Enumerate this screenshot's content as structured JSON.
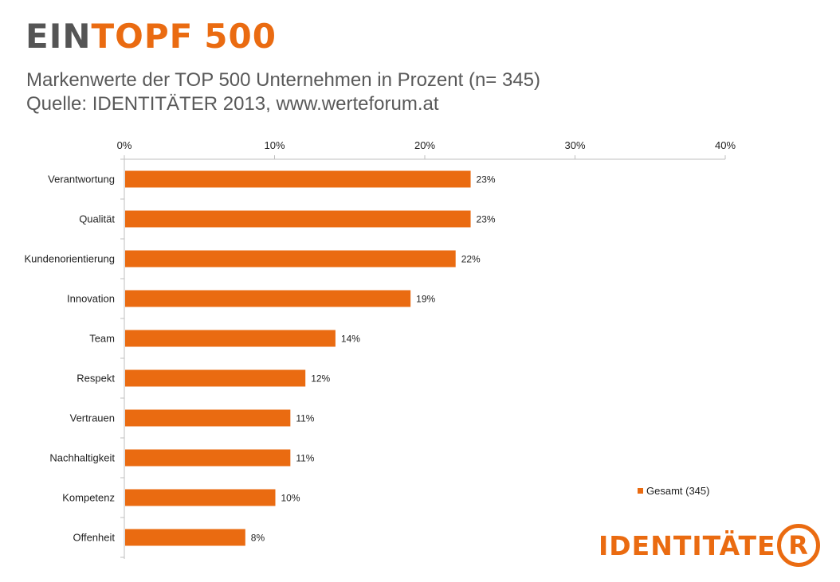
{
  "header": {
    "headline_part1": "EIN",
    "headline_part2": "TOPF",
    "headline_part3": "500",
    "subtitle_line1": "Markenwerte der TOP 500 Unternehmen in Prozent (n= 345)",
    "subtitle_line2": "Quelle: IDENTITÄTER 2013, www.werteforum.at"
  },
  "colors": {
    "accent": "#ea6b11",
    "headline_gray": "#555555",
    "axis": "#bfbfbf"
  },
  "logo": {
    "text": "IDENTITÄTE",
    "mark": "R"
  },
  "chart_data": {
    "type": "bar",
    "orientation": "horizontal",
    "categories": [
      "Verantwortung",
      "Qualität",
      "Kundenorientierung",
      "Innovation",
      "Team",
      "Respekt",
      "Vertrauen",
      "Nachhaltigkeit",
      "Kompetenz",
      "Offenheit"
    ],
    "series": [
      {
        "name": "Gesamt (345)",
        "values": [
          23,
          23,
          22,
          19,
          14,
          12,
          11,
          11,
          10,
          8
        ],
        "labels": [
          "23%",
          "23%",
          "22%",
          "19%",
          "14%",
          "12%",
          "11%",
          "11%",
          "10%",
          "8%"
        ]
      }
    ],
    "xlim": [
      0,
      40
    ],
    "xticks": [
      0,
      10,
      20,
      30,
      40
    ],
    "xtick_labels": [
      "0%",
      "10%",
      "20%",
      "30%",
      "40%"
    ],
    "x_axis_position": "top",
    "grid": false,
    "legend": {
      "position": "right",
      "entries": [
        "Gesamt (345)"
      ]
    }
  }
}
